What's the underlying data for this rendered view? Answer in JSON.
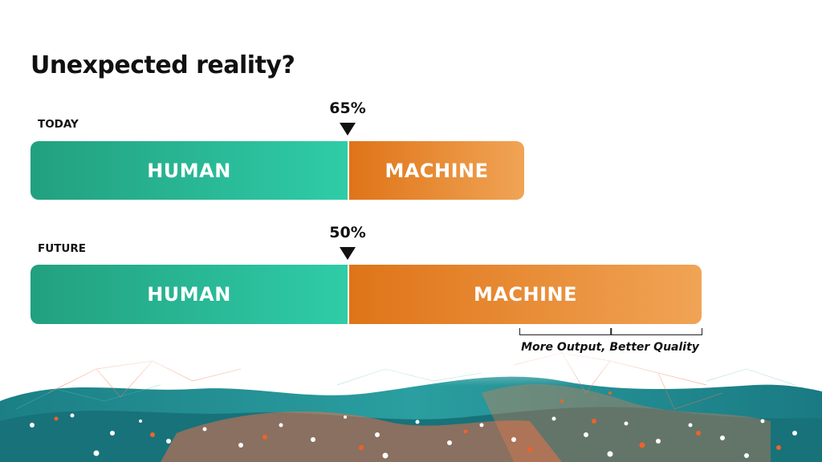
{
  "title": "Unexpected reality?",
  "today": {
    "label": "TODAY",
    "percent_label": "65%",
    "human_label": "HUMAN",
    "machine_label": "MACHINE"
  },
  "future": {
    "label": "FUTURE",
    "percent_label": "50%",
    "human_label": "HUMAN",
    "machine_label": "MACHINE"
  },
  "annotation": "More Output, Better Quality",
  "colors": {
    "human": "#2bbf9c",
    "machine": "#e88a33",
    "network_teal": "#1f8a8a",
    "network_orange": "#f06a3a"
  }
}
